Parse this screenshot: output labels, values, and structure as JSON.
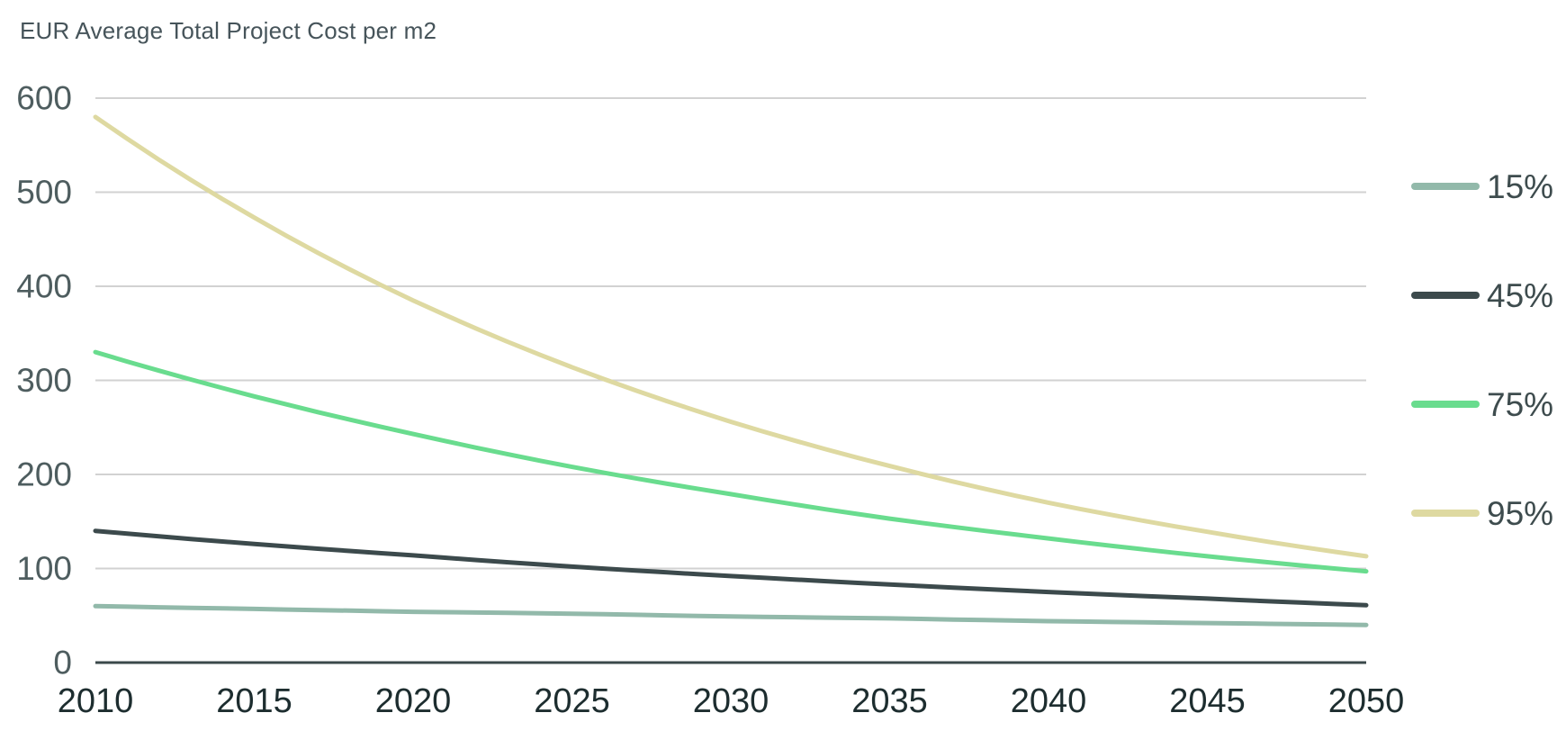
{
  "chart_data": {
    "type": "line",
    "title": "EUR Average Total Project Cost per m2",
    "xlabel": "",
    "ylabel": "",
    "x": [
      2010,
      2015,
      2020,
      2025,
      2030,
      2035,
      2040,
      2045,
      2050
    ],
    "xlim": [
      2010,
      2050
    ],
    "ylim": [
      0,
      600
    ],
    "ytick_interval": 100,
    "yticks": [
      0,
      100,
      200,
      300,
      400,
      500,
      600
    ],
    "grid": "horizontal",
    "legend_position": "right",
    "interpolation": "exponential-smooth",
    "series": [
      {
        "name": "15%",
        "color": "#92b9aa",
        "values": [
          60,
          57,
          54,
          52,
          49,
          47,
          44,
          42,
          40
        ]
      },
      {
        "name": "45%",
        "color": "#3c4a4c",
        "values": [
          140,
          126,
          114,
          102,
          92,
          83,
          75,
          68,
          61
        ]
      },
      {
        "name": "75%",
        "color": "#69dc8e",
        "values": [
          330,
          283,
          243,
          208,
          179,
          153,
          132,
          113,
          97
        ]
      },
      {
        "name": "95%",
        "color": "#ded9a1",
        "values": [
          580,
          473,
          385,
          314,
          256,
          209,
          170,
          139,
          113
        ]
      }
    ],
    "colors": {
      "background": "#ffffff",
      "title_text": "#46545a",
      "y_tick_label": "#4e5d5f",
      "x_tick_label": "#1d2d2f",
      "gridline": "#d2d2d2",
      "axis_line": "#3b494b",
      "legend_text": "#3e4c4e"
    }
  }
}
